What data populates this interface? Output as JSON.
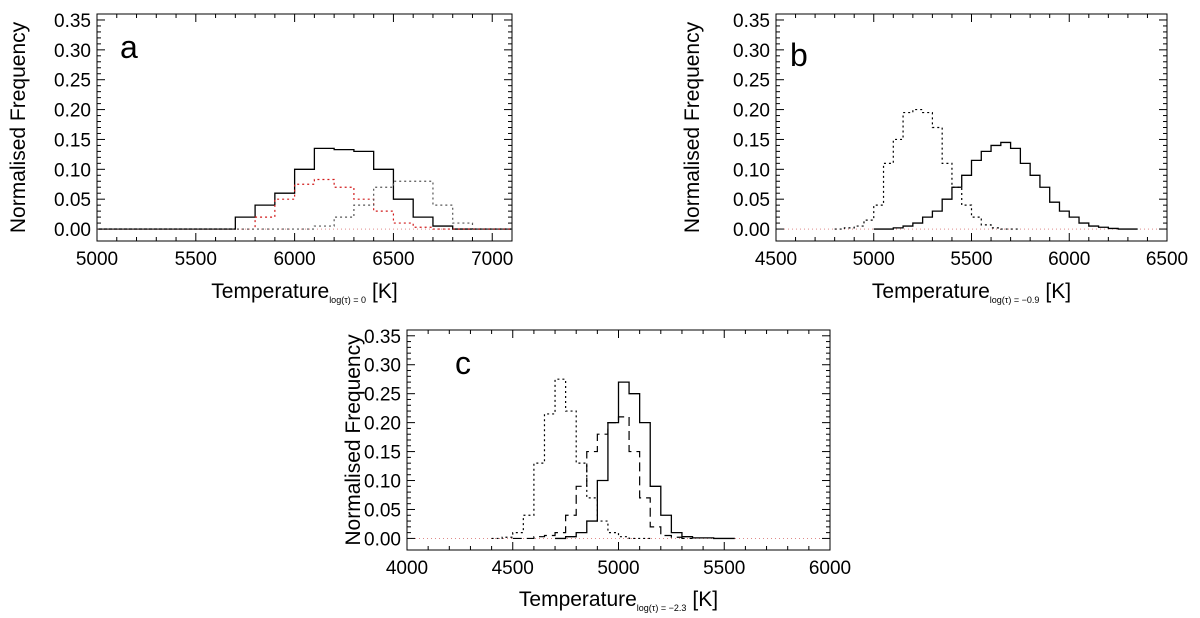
{
  "chart_data": [
    {
      "panel": "a",
      "type": "histogram",
      "xlabel": "Temperature",
      "xlabel_subscript": "log(τ) = 0",
      "xlabel_unit": "[K]",
      "ylabel": "Normalised Frequency",
      "xlim": [
        5000,
        7100
      ],
      "ylim": [
        -0.02,
        0.36
      ],
      "xticks": [
        "5000",
        "5500",
        "6000",
        "6500",
        "7000"
      ],
      "yticks": [
        "0.00",
        "0.05",
        "0.10",
        "0.15",
        "0.20",
        "0.25",
        "0.30",
        "0.35"
      ],
      "series": [
        {
          "style": "solid",
          "color": "#000000",
          "bin_width": 100,
          "x": [
            5000,
            5100,
            5200,
            5300,
            5400,
            5500,
            5600,
            5700,
            5800,
            5900,
            6000,
            6100,
            6200,
            6300,
            6400,
            6500,
            6600,
            6700,
            6800,
            6900,
            7000
          ],
          "values": [
            0,
            0,
            0,
            0,
            0,
            0,
            0,
            0.02,
            0.04,
            0.06,
            0.1,
            0.135,
            0.133,
            0.13,
            0.1,
            0.05,
            0.02,
            0.005,
            0,
            0,
            0
          ]
        },
        {
          "style": "dotted",
          "color": "#d11a1a",
          "bin_width": 100,
          "x": [
            5000,
            5100,
            5200,
            5300,
            5400,
            5500,
            5600,
            5700,
            5800,
            5900,
            6000,
            6100,
            6200,
            6300,
            6400,
            6500,
            6600,
            6700,
            6800,
            6900,
            7000
          ],
          "values": [
            0,
            0,
            0,
            0,
            0,
            0,
            0,
            0,
            0.02,
            0.05,
            0.075,
            0.083,
            0.07,
            0.05,
            0.03,
            0.01,
            0.003,
            0,
            0,
            0,
            0
          ]
        },
        {
          "style": "dotted",
          "color": "#555555",
          "bin_width": 100,
          "x": [
            5000,
            5100,
            5200,
            5300,
            5400,
            5500,
            5600,
            5700,
            5800,
            5900,
            6000,
            6100,
            6200,
            6300,
            6400,
            6500,
            6600,
            6700,
            6800,
            6900,
            7000
          ],
          "values": [
            0,
            0,
            0,
            0,
            0,
            0,
            0,
            0,
            0,
            0,
            0,
            0.005,
            0.02,
            0.04,
            0.07,
            0.08,
            0.08,
            0.04,
            0.01,
            0,
            0
          ]
        }
      ]
    },
    {
      "panel": "b",
      "type": "histogram",
      "xlabel": "Temperature",
      "xlabel_subscript": "log(τ) = −0.9",
      "xlabel_unit": "[K]",
      "ylabel": "Normalised Frequency",
      "xlim": [
        4500,
        6500
      ],
      "ylim": [
        -0.02,
        0.36
      ],
      "xticks": [
        "4500",
        "5000",
        "5500",
        "6000",
        "6500"
      ],
      "yticks": [
        "0.00",
        "0.05",
        "0.10",
        "0.15",
        "0.20",
        "0.25",
        "0.30",
        "0.35"
      ],
      "series": [
        {
          "style": "dotted",
          "color": "#000000",
          "bin_width": 50,
          "x": [
            4800,
            4850,
            4900,
            4950,
            5000,
            5050,
            5100,
            5150,
            5200,
            5250,
            5300,
            5350,
            5400,
            5450,
            5500,
            5550,
            5600,
            5650,
            5700
          ],
          "values": [
            0,
            0.002,
            0.005,
            0.015,
            0.04,
            0.11,
            0.15,
            0.195,
            0.2,
            0.195,
            0.17,
            0.11,
            0.07,
            0.04,
            0.02,
            0.007,
            0.002,
            0,
            0
          ]
        },
        {
          "style": "solid",
          "color": "#000000",
          "bin_width": 50,
          "x": [
            5000,
            5050,
            5100,
            5150,
            5200,
            5250,
            5300,
            5350,
            5400,
            5450,
            5500,
            5550,
            5600,
            5650,
            5700,
            5750,
            5800,
            5850,
            5900,
            5950,
            6000,
            6050,
            6100,
            6150,
            6200,
            6250,
            6300
          ],
          "values": [
            0,
            0,
            0.002,
            0.005,
            0.01,
            0.02,
            0.03,
            0.05,
            0.07,
            0.09,
            0.115,
            0.13,
            0.14,
            0.145,
            0.135,
            0.11,
            0.09,
            0.07,
            0.045,
            0.03,
            0.02,
            0.01,
            0.005,
            0.003,
            0.001,
            0,
            0
          ]
        }
      ]
    },
    {
      "panel": "c",
      "type": "histogram",
      "xlabel": "Temperature",
      "xlabel_subscript": "log(τ) = −2.3",
      "xlabel_unit": "[K]",
      "ylabel": "Normalised Frequency",
      "xlim": [
        4000,
        6000
      ],
      "ylim": [
        -0.02,
        0.36
      ],
      "xticks": [
        "4000",
        "4500",
        "5000",
        "5500",
        "6000"
      ],
      "yticks": [
        "0.00",
        "0.05",
        "0.10",
        "0.15",
        "0.20",
        "0.25",
        "0.30",
        "0.35"
      ],
      "series": [
        {
          "style": "dotted",
          "color": "#000000",
          "bin_width": 50,
          "x": [
            4400,
            4450,
            4500,
            4550,
            4600,
            4650,
            4700,
            4750,
            4800,
            4850,
            4900,
            4950,
            5000,
            5050,
            5100
          ],
          "values": [
            0,
            0.002,
            0.01,
            0.04,
            0.13,
            0.215,
            0.275,
            0.22,
            0.13,
            0.07,
            0.03,
            0.01,
            0.003,
            0,
            0
          ]
        },
        {
          "style": "dashed",
          "color": "#000000",
          "bin_width": 50,
          "x": [
            4500,
            4550,
            4600,
            4650,
            4700,
            4750,
            4800,
            4850,
            4900,
            4950,
            5000,
            5050,
            5100,
            5150,
            5200,
            5250,
            5300
          ],
          "values": [
            0,
            0,
            0.003,
            0.005,
            0.01,
            0.04,
            0.09,
            0.15,
            0.18,
            0.2,
            0.21,
            0.15,
            0.07,
            0.02,
            0.005,
            0.002,
            0
          ]
        },
        {
          "style": "solid",
          "color": "#000000",
          "bin_width": 50,
          "x": [
            4700,
            4750,
            4800,
            4850,
            4900,
            4950,
            5000,
            5050,
            5100,
            5150,
            5200,
            5250,
            5300,
            5350,
            5400,
            5450,
            5500
          ],
          "values": [
            0,
            0.003,
            0.01,
            0.03,
            0.1,
            0.2,
            0.27,
            0.25,
            0.2,
            0.09,
            0.04,
            0.01,
            0.003,
            0.001,
            0.001,
            0,
            0
          ]
        }
      ]
    }
  ]
}
